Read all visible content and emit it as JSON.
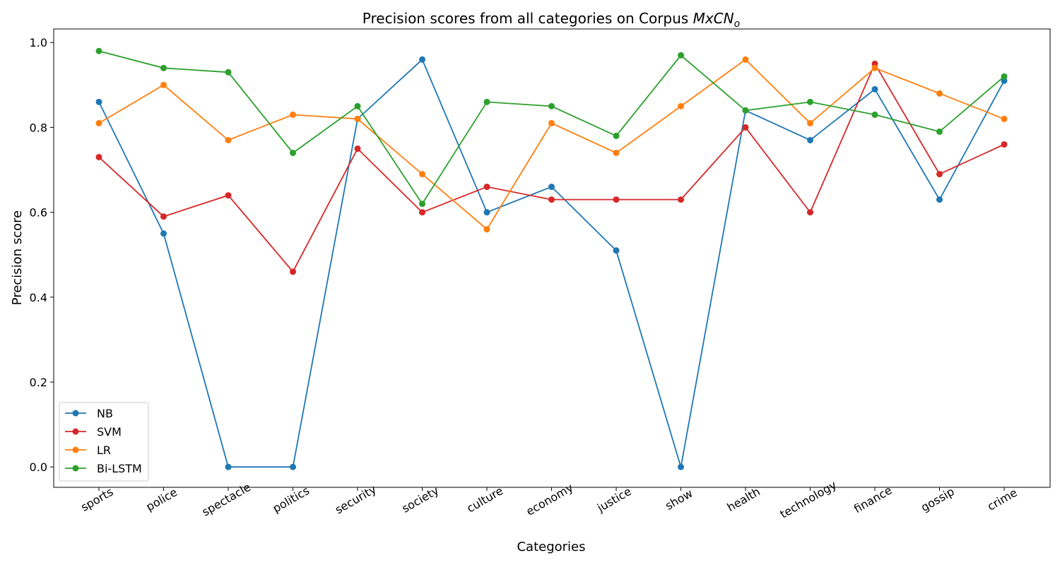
{
  "chart_data": {
    "type": "line",
    "title_main": "Precision scores from all categories on Corpus ",
    "title_math": "MxCN",
    "title_math_sub": "o",
    "xlabel": "Categories",
    "ylabel": "Precision score",
    "categories": [
      "sports",
      "police",
      "spectacle",
      "politics",
      "security",
      "society",
      "culture",
      "economy",
      "justice",
      "show",
      "health",
      "technology",
      "finance",
      "gossip",
      "crime"
    ],
    "yticks": [
      "0.0",
      "0.2",
      "0.4",
      "0.6",
      "0.8",
      "1.0"
    ],
    "ylim": [
      -0.048,
      1.032
    ],
    "grid": false,
    "legend_position": "lower-left",
    "series": [
      {
        "name": "NB",
        "color": "#1f77b4",
        "values": [
          0.86,
          0.55,
          0.0,
          0.0,
          0.82,
          0.96,
          0.6,
          0.66,
          0.51,
          0.0,
          0.84,
          0.77,
          0.89,
          0.63,
          0.91
        ]
      },
      {
        "name": "SVM",
        "color": "#d62728",
        "values": [
          0.73,
          0.59,
          0.64,
          0.46,
          0.75,
          0.6,
          0.66,
          0.63,
          0.63,
          0.63,
          0.8,
          0.6,
          0.95,
          0.69,
          0.76
        ]
      },
      {
        "name": "LR",
        "color": "#ff7f0e",
        "values": [
          0.81,
          0.9,
          0.77,
          0.83,
          0.82,
          0.69,
          0.56,
          0.81,
          0.74,
          0.85,
          0.96,
          0.81,
          0.94,
          0.88,
          0.82
        ]
      },
      {
        "name": "Bi-LSTM",
        "color": "#2ca02c",
        "values": [
          0.98,
          0.94,
          0.93,
          0.74,
          0.85,
          0.62,
          0.86,
          0.85,
          0.78,
          0.97,
          0.84,
          0.86,
          0.83,
          0.79,
          0.92
        ]
      }
    ]
  }
}
